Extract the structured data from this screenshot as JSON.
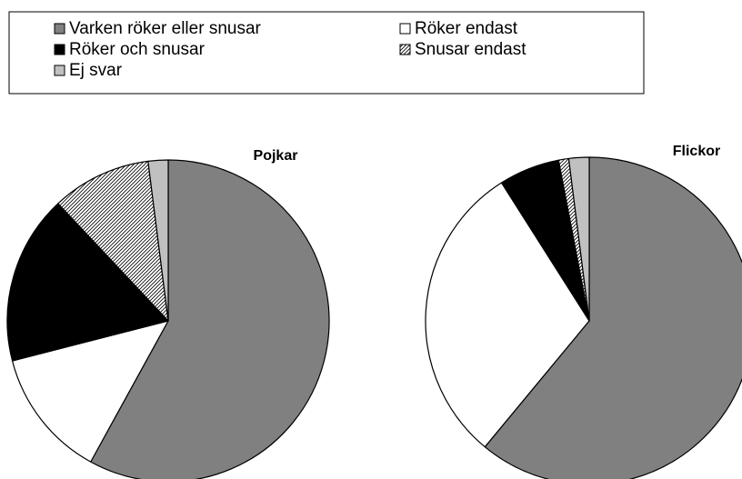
{
  "chart_data": [
    {
      "type": "pie",
      "title": "Pojkar",
      "categories": [
        "Varken röker eller snusar",
        "Röker endast",
        "Röker och snusar",
        "Snusar endast",
        "Ej svar"
      ],
      "values": [
        58,
        13,
        17,
        10,
        2
      ],
      "colors": [
        "#808080",
        "#ffffff",
        "#000000",
        "#ffffff",
        "#c0c0c0"
      ],
      "patterns": [
        null,
        null,
        null,
        "diagonal",
        null
      ]
    },
    {
      "type": "pie",
      "title": "Flickor",
      "categories": [
        "Varken röker eller snusar",
        "Röker endast",
        "Röker och snusar",
        "Snusar endast",
        "Ej svar"
      ],
      "values": [
        61,
        30,
        6,
        1,
        2
      ],
      "colors": [
        "#808080",
        "#ffffff",
        "#000000",
        "#ffffff",
        "#c0c0c0"
      ],
      "patterns": [
        null,
        null,
        null,
        "diagonal",
        null
      ]
    }
  ]
}
